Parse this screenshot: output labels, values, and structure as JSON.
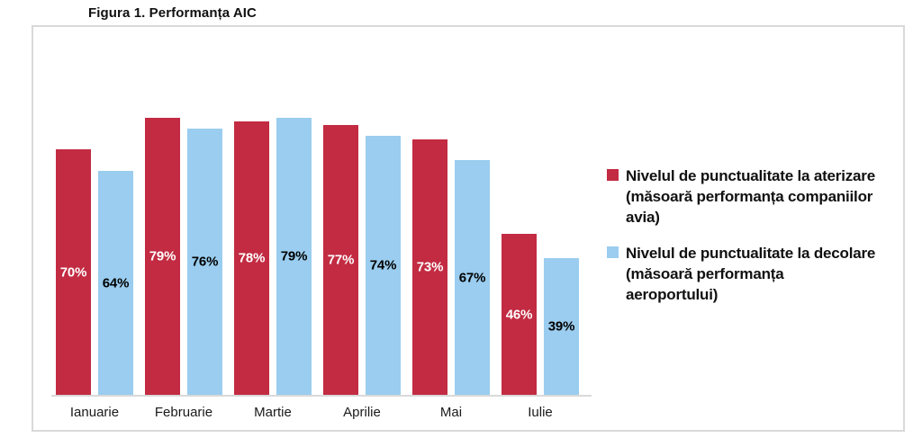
{
  "figure": {
    "title": "Figura 1. Performanța AIC"
  },
  "chart_data": {
    "type": "bar",
    "title": "Figura 1. Performanța AIC",
    "categories": [
      "Ianuarie",
      "Februarie",
      "Martie",
      "Aprilie",
      "Mai",
      "Iulie"
    ],
    "series": [
      {
        "name": "Nivelul de punctualitate la aterizare (măsoară performanța companiilor avia)",
        "values": [
          70,
          79,
          78,
          77,
          73,
          46
        ],
        "color": "#c22b42",
        "label_color": "#ffffff"
      },
      {
        "name": "Nivelul de punctualitate la decolare (măsoară performanța aeroportului)",
        "values": [
          64,
          76,
          79,
          74,
          67,
          39
        ],
        "color": "#9acdef",
        "label_color": "#000000"
      }
    ],
    "value_suffix": "%",
    "data_labels_position": "center",
    "ylim": [
      0,
      105
    ],
    "grid": false,
    "y_axis_visible": false,
    "legend_position": "right",
    "legend": [
      {
        "color": "#c22b42",
        "lines": [
          "Nivelul de punctualitate la aterizare",
          "(măsoară performanța companiilor",
          "avia)"
        ]
      },
      {
        "color": "#9acdef",
        "lines": [
          "Nivelul de punctualitate la decolare",
          "(măsoară performanța",
          "aeroportului)"
        ]
      }
    ],
    "frame_color": "#d9d9d9",
    "axis_line_color": "#d9d9d9"
  }
}
